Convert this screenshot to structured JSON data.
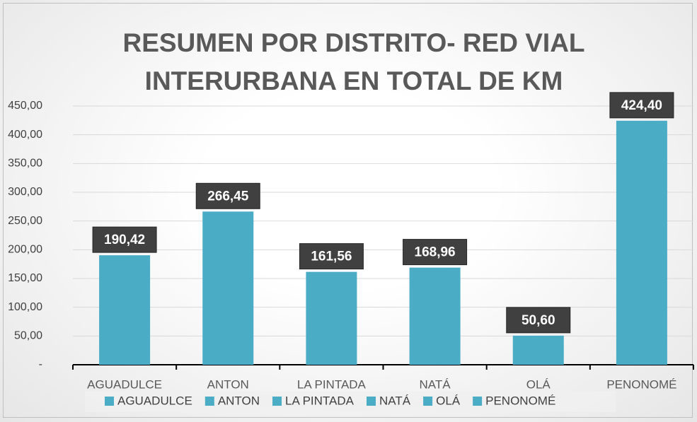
{
  "chart_data": {
    "type": "bar",
    "title": "RESUMEN POR DISTRITO- RED VIAL INTERURBANA EN TOTAL DE KM",
    "categories": [
      "AGUADULCE",
      "ANTON",
      "LA PINTADA",
      "NATÁ",
      "OLÁ",
      "PENONOMÉ"
    ],
    "values": [
      190.42,
      266.45,
      161.56,
      168.96,
      50.6,
      424.4
    ],
    "value_labels": [
      "190,42",
      "266,45",
      "161,56",
      "168,96",
      "50,60",
      "424,40"
    ],
    "color": "#4bacc6",
    "ylim": [
      0,
      450
    ],
    "yticks": [
      {
        "value": 0,
        "label": "-"
      },
      {
        "value": 50,
        "label": "50,00"
      },
      {
        "value": 100,
        "label": "100,00"
      },
      {
        "value": 150,
        "label": "150,00"
      },
      {
        "value": 200,
        "label": "200,00"
      },
      {
        "value": 250,
        "label": "250,00"
      },
      {
        "value": 300,
        "label": "300,00"
      },
      {
        "value": 350,
        "label": "350,00"
      },
      {
        "value": 400,
        "label": "400,00"
      },
      {
        "value": 450,
        "label": "450,00"
      }
    ],
    "grid": true,
    "legend": "bottom"
  }
}
